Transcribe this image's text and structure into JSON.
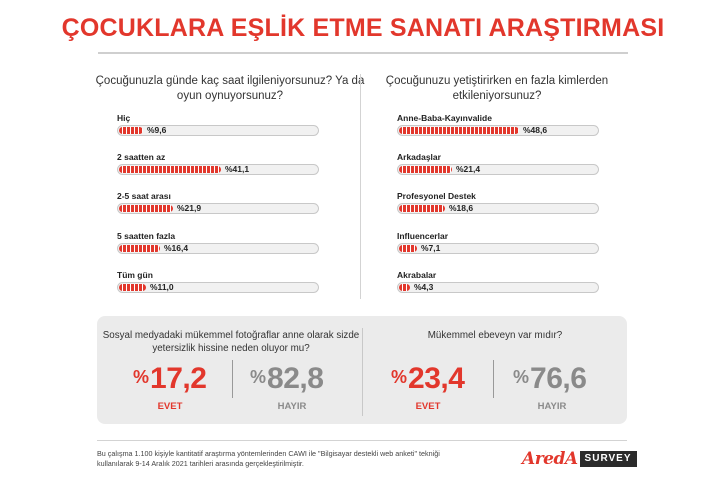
{
  "title": "ÇOCUKLARA EŞLİK ETME SANATI ARAŞTIRMASI",
  "left_question": "Çocuğunuzla günde kaç saat ilgileniyorsunuz? Ya da oyun oynuyorsunuz?",
  "right_question": "Çocuğunuzu yetiştirirken en fazla kimlerden etkileniyorsunuz?",
  "chart_data": [
    {
      "type": "bar",
      "title": "Çocuğunuzla günde kaç saat ilgileniyorsunuz? Ya da oyun oynuyorsunuz?",
      "categories": [
        "Hiç",
        "2 saatten az",
        "2-5 saat arası",
        "5 saatten fazla",
        "Tüm gün"
      ],
      "values": [
        9.6,
        41.1,
        21.9,
        16.4,
        11.0
      ],
      "value_labels": [
        "%9,6",
        "%41,1",
        "%21,9",
        "%16,4",
        "%11,0"
      ],
      "xlim": [
        0,
        100
      ],
      "orientation": "horizontal"
    },
    {
      "type": "bar",
      "title": "Çocuğunuzu yetiştirirken en fazla kimlerden etkileniyorsunuz?",
      "categories": [
        "Anne-Baba-Kayınvalide",
        "Arkadaşlar",
        "Profesyonel Destek",
        "Influencerlar",
        "Akrabalar"
      ],
      "values": [
        48.6,
        21.4,
        18.6,
        7.1,
        4.3
      ],
      "value_labels": [
        "%48,6",
        "%21,4",
        "%18,6",
        "%7,1",
        "%4,3"
      ],
      "xlim": [
        0,
        100
      ],
      "orientation": "horizontal"
    }
  ],
  "bottom": {
    "left": {
      "question": "Sosyal medyadaki mükemmel fotoğraflar anne olarak sizde yetersizlik hissine neden oluyor mu?",
      "yes_pct_sign": "%",
      "yes_value": "17,2",
      "yes_label": "EVET",
      "no_pct_sign": "%",
      "no_value": "82,8",
      "no_label": "HAYIR"
    },
    "right": {
      "question": "Mükemmel ebeveyn var mıdır?",
      "yes_pct_sign": "%",
      "yes_value": "23,4",
      "yes_label": "EVET",
      "no_pct_sign": "%",
      "no_value": "76,6",
      "no_label": "HAYIR"
    }
  },
  "footnote": "Bu çalışma 1.100 kişiyle kantitatif araştırma yöntemlerinden CAWI ile \"Bilgisayar destekli web anketi\" tekniği kullanılarak 9-14 Aralık 2021 tarihleri arasında gerçekleştirilmiştir.",
  "logo": {
    "mark": "AredA",
    "box": "SURVEY"
  },
  "colors": {
    "accent": "#e2372c",
    "track": "#f1f1f1",
    "panel": "#ebebeb"
  }
}
